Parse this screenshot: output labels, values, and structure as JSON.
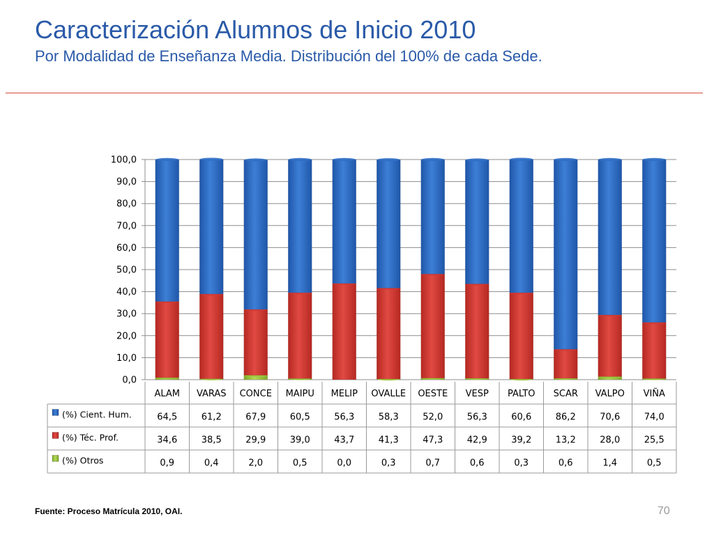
{
  "slide": {
    "title": "Caracterización Alumnos de Inicio 2010",
    "subtitle": "Por Modalidad de Enseñanza Media. Distribución del 100% de cada Sede.",
    "source": "Fuente: Proceso Matrícula 2010, OAI.",
    "page_number": "70"
  },
  "colors": {
    "title": "#2a5aa8",
    "divider": "#d64a3a",
    "series": [
      "#2f6fc7",
      "#d53a33",
      "#9bc43c"
    ]
  },
  "chart_data": {
    "type": "bar",
    "stacked": true,
    "categories": [
      "ALAM",
      "VARAS",
      "CONCE",
      "MAIPU",
      "MELIP",
      "OVALLE",
      "OESTE",
      "VESP",
      "PALTO",
      "SCAR",
      "VALPO",
      "VIÑA"
    ],
    "series": [
      {
        "name": "(%) Cient. Hum.",
        "values": [
          64.5,
          61.2,
          67.9,
          60.5,
          56.3,
          58.3,
          52.0,
          56.3,
          60.6,
          86.2,
          70.6,
          74.0
        ],
        "labels": [
          "64,5",
          "61,2",
          "67,9",
          "60,5",
          "56,3",
          "58,3",
          "52,0",
          "56,3",
          "60,6",
          "86,2",
          "70,6",
          "74,0"
        ]
      },
      {
        "name": "(%) Téc. Prof.",
        "values": [
          34.6,
          38.5,
          29.9,
          39.0,
          43.7,
          41.3,
          47.3,
          42.9,
          39.2,
          13.2,
          28.0,
          25.5
        ],
        "labels": [
          "34,6",
          "38,5",
          "29,9",
          "39,0",
          "43,7",
          "41,3",
          "47,3",
          "42,9",
          "39,2",
          "13,2",
          "28,0",
          "25,5"
        ]
      },
      {
        "name": "(%) Otros",
        "values": [
          0.9,
          0.4,
          2.0,
          0.5,
          0.0,
          0.3,
          0.7,
          0.6,
          0.3,
          0.6,
          1.4,
          0.5
        ],
        "labels": [
          "0,9",
          "0,4",
          "2,0",
          "0,5",
          "0,0",
          "0,3",
          "0,7",
          "0,6",
          "0,3",
          "0,6",
          "1,4",
          "0,5"
        ]
      }
    ],
    "stack_order_bottom_to_top": [
      "(%) Otros",
      "(%) Téc. Prof.",
      "(%) Cient. Hum."
    ],
    "ylim": [
      0,
      100
    ],
    "yticks": [
      "0,0",
      "10,0",
      "20,0",
      "30,0",
      "40,0",
      "50,0",
      "60,0",
      "70,0",
      "80,0",
      "90,0",
      "100,0"
    ],
    "grid": true,
    "legend": "data-table"
  }
}
